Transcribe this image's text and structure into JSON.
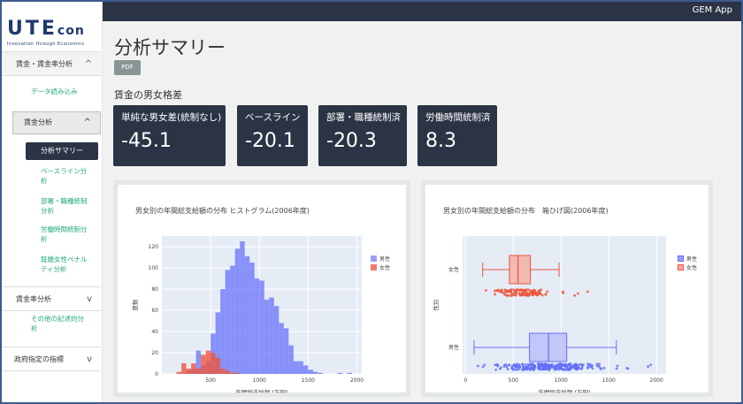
{
  "app": {
    "name": "GEM App"
  },
  "logo": {
    "brand_main": "UTE",
    "brand_sub": "con",
    "tagline": "Innovation through Economics"
  },
  "sidebar": {
    "section1": {
      "label": "賃金・賃金率分析",
      "chevron": "^"
    },
    "data_load": "データ読み込み",
    "wage_analysis": {
      "label": "賃金分析",
      "chevron": "^"
    },
    "active_item": "分析サマリー",
    "items": [
      "ベースライン分析",
      "部署・職種統制分析",
      "労働時間統制分析",
      "既婚女性ペナルティ分析"
    ],
    "section2": {
      "label": "賃金率分析",
      "chevron": "v"
    },
    "other": "その他の記述的分析",
    "section3": {
      "label": "政府指定の指標",
      "chevron": "v"
    }
  },
  "page": {
    "title": "分析サマリー",
    "pdf_label": "PDF",
    "subtitle": "賃金の男女格差"
  },
  "cards": [
    {
      "label": "単純な男女差(統制なし)",
      "value": "-45.1"
    },
    {
      "label": "ベースライン",
      "value": "-20.1"
    },
    {
      "label": "部署・職種統制済",
      "value": "-20.3"
    },
    {
      "label": "労働時間統制済",
      "value": "8.3"
    }
  ],
  "colors": {
    "male": "#636efa",
    "female": "#ef553b",
    "dark": "#2b3445",
    "accent": "#20a877"
  },
  "chart_data": [
    {
      "type": "bar",
      "title": "男女別の年間総支給額の分布 ヒストグラム(2006年度)",
      "xlabel": "年間総支給額 (万円)",
      "ylabel": "度数",
      "xlim": [
        0,
        2050
      ],
      "ylim": [
        0,
        130
      ],
      "xticks": [
        500,
        1000,
        1500,
        2000
      ],
      "yticks": [
        0,
        20,
        40,
        60,
        80,
        100,
        120
      ],
      "legend": [
        "男性",
        "女性"
      ],
      "legend_position": "top-right",
      "bin_width": 50,
      "series": [
        {
          "name": "男性",
          "bins_start": 250,
          "values": [
            3,
            5,
            22,
            8,
            12,
            38,
            58,
            80,
            98,
            102,
            118,
            125,
            111,
            105,
            90,
            88,
            70,
            72,
            64,
            48,
            43,
            27,
            12,
            12,
            8,
            4,
            2,
            1,
            0,
            0,
            0,
            1,
            0,
            1
          ]
        },
        {
          "name": "女性",
          "bins_start": 150,
          "values": [
            2,
            10,
            5,
            10,
            5,
            18,
            22,
            20,
            15,
            5,
            3,
            1,
            1
          ]
        }
      ]
    },
    {
      "type": "box",
      "title": "男女別の年間総支給額の分布　箱ひげ図(2006年度)",
      "xlabel": "年間総支給額 (万円)",
      "ylabel": "性別",
      "xlim": [
        -30,
        2100
      ],
      "xticks": [
        0,
        500,
        1000,
        1500,
        2000
      ],
      "categories": [
        "男性",
        "女性"
      ],
      "legend": [
        "男性",
        "女性"
      ],
      "legend_position": "top-right",
      "series": [
        {
          "name": "男性",
          "min": 90,
          "q1": 670,
          "median": 870,
          "q3": 1060,
          "max": 1580
        },
        {
          "name": "女性",
          "min": 180,
          "q1": 460,
          "median": 550,
          "q3": 680,
          "max": 980
        }
      ]
    }
  ]
}
